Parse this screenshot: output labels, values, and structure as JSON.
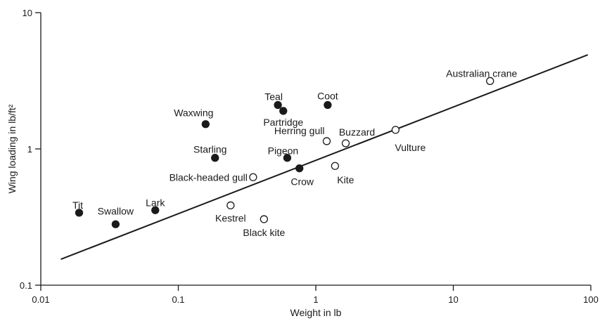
{
  "chart_data": {
    "type": "scatter",
    "xlabel": "Weight in lb",
    "ylabel": "Wing loading in lb/ft²",
    "x_scale": "log",
    "y_scale": "log",
    "xlim": [
      0.01,
      100
    ],
    "ylim": [
      0.1,
      10
    ],
    "x_ticks": [
      "0.01",
      "0.1",
      "1",
      "10",
      "100"
    ],
    "y_ticks": [
      "0.1",
      "1",
      "10"
    ],
    "grid": false,
    "legend": "none",
    "series": [
      {
        "marker": "filled-circle",
        "points": [
          {
            "label": "Tit",
            "x": 0.019,
            "y": 0.34
          },
          {
            "label": "Swallow",
            "x": 0.035,
            "y": 0.28
          },
          {
            "label": "Lark",
            "x": 0.068,
            "y": 0.355
          },
          {
            "label": "Waxwing",
            "x": 0.158,
            "y": 1.52
          },
          {
            "label": "Starling",
            "x": 0.185,
            "y": 0.86
          },
          {
            "label": "Teal",
            "x": 0.53,
            "y": 2.1
          },
          {
            "label": "Partridge",
            "x": 0.58,
            "y": 1.9
          },
          {
            "label": "Pigeon",
            "x": 0.62,
            "y": 0.86
          },
          {
            "label": "Crow",
            "x": 0.76,
            "y": 0.72
          },
          {
            "label": "Coot",
            "x": 1.22,
            "y": 2.1
          }
        ]
      },
      {
        "marker": "open-circle",
        "points": [
          {
            "label": "Kestrel",
            "x": 0.24,
            "y": 0.385
          },
          {
            "label": "Black-headed gull",
            "x": 0.35,
            "y": 0.62
          },
          {
            "label": "Black kite",
            "x": 0.42,
            "y": 0.305
          },
          {
            "label": "Herring gull",
            "x": 1.2,
            "y": 1.14
          },
          {
            "label": "Kite",
            "x": 1.38,
            "y": 0.75
          },
          {
            "label": "Buzzard",
            "x": 1.65,
            "y": 1.1
          },
          {
            "label": "Vulture",
            "x": 3.8,
            "y": 1.38
          },
          {
            "label": "Australian crane",
            "x": 18.5,
            "y": 3.15
          }
        ]
      }
    ],
    "trend_line": {
      "x": [
        0.014,
        95
      ],
      "y": [
        0.155,
        4.9
      ]
    }
  }
}
